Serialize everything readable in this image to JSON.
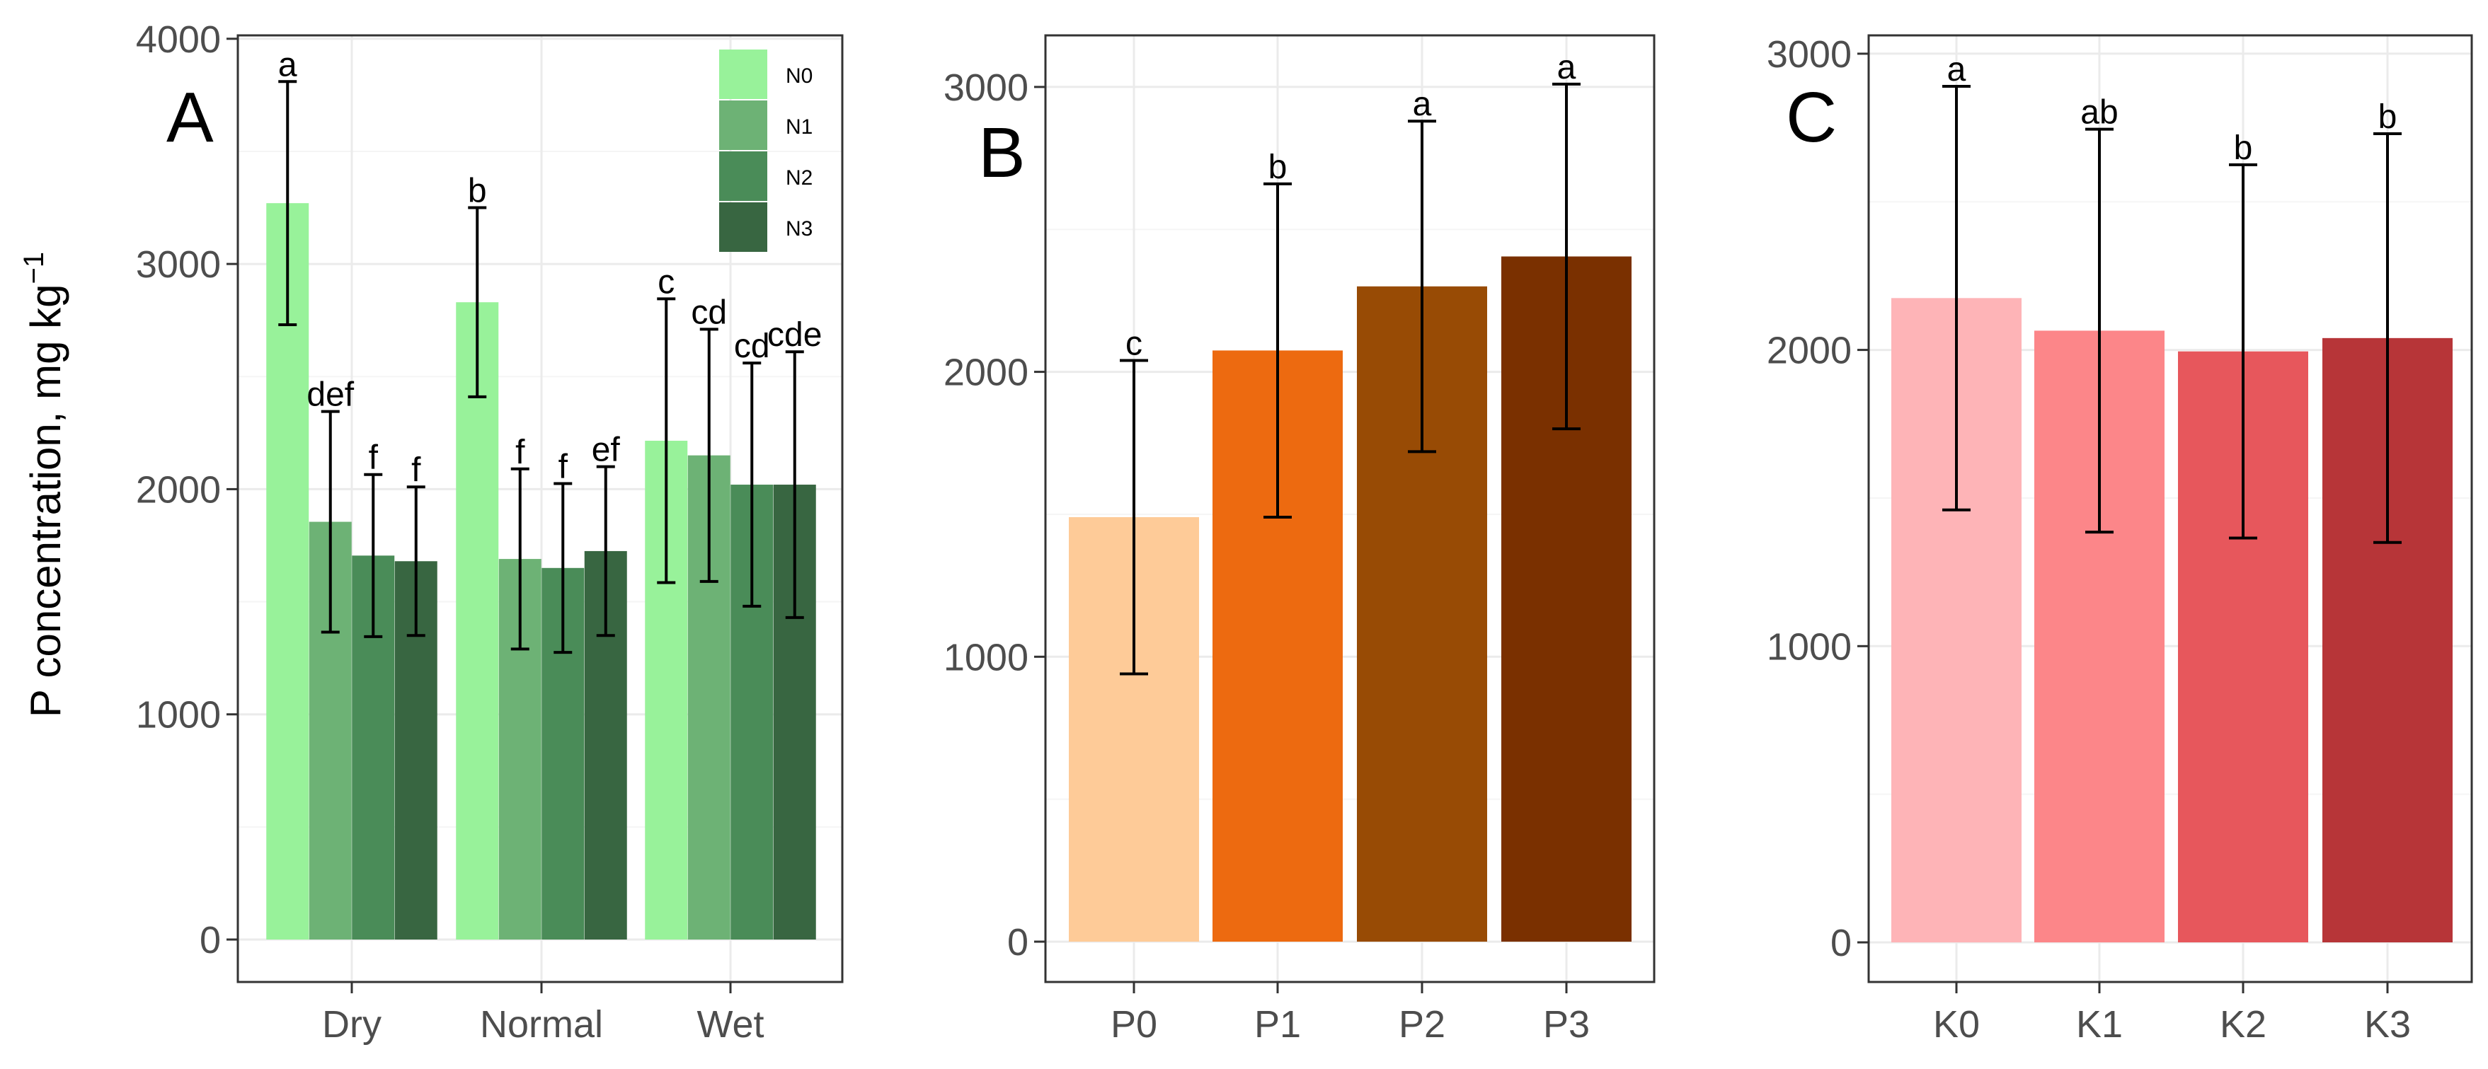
{
  "chart_data": [
    {
      "type": "bar",
      "panel_label": "A",
      "ylabel": "P concentration, mg kg",
      "ylabel_superscript": "−1",
      "xlabel": "",
      "ylim": [
        0,
        4000
      ],
      "yticks": [
        "0",
        "1000",
        "2000",
        "3000",
        "4000"
      ],
      "grid": true,
      "legend_position": "top-right",
      "categories": [
        "Dry",
        "Normal",
        "Wet"
      ],
      "series": [
        {
          "name": "N0",
          "color": "#98f29a",
          "values": [
            3270,
            2830,
            2215
          ],
          "error": [
            540,
            420,
            630
          ],
          "letters": [
            "a",
            "b",
            "c"
          ]
        },
        {
          "name": "N1",
          "color": "#6db275",
          "values": [
            1855,
            1690,
            2150
          ],
          "error": [
            490,
            400,
            560
          ],
          "letters": [
            "def",
            "f",
            "cd"
          ]
        },
        {
          "name": "N2",
          "color": "#4a8c58",
          "values": [
            1705,
            1650,
            2020
          ],
          "error": [
            360,
            375,
            540
          ],
          "letters": [
            "f",
            "f",
            "cd"
          ]
        },
        {
          "name": "N3",
          "color": "#386641",
          "values": [
            1680,
            1725,
            2020
          ],
          "error": [
            330,
            375,
            590
          ],
          "letters": [
            "f",
            "ef",
            "cde"
          ]
        }
      ]
    },
    {
      "type": "bar",
      "panel_label": "B",
      "ylim": [
        0,
        3000
      ],
      "yticks": [
        "0",
        "1000",
        "2000",
        "3000"
      ],
      "grid": true,
      "categories": [
        "P0",
        "P1",
        "P2",
        "P3"
      ],
      "values": [
        1490,
        2075,
        2300,
        2405
      ],
      "error": [
        550,
        585,
        580,
        605
      ],
      "letters": [
        "c",
        "b",
        "a",
        "a"
      ],
      "colors": [
        "#fecb98",
        "#ed6a10",
        "#984b05",
        "#7a3000"
      ]
    },
    {
      "type": "bar",
      "panel_label": "C",
      "ylim": [
        0,
        3000
      ],
      "yticks": [
        "0",
        "1000",
        "2000",
        "3000"
      ],
      "grid": true,
      "categories": [
        "K0",
        "K1",
        "K2",
        "K3"
      ],
      "values": [
        2175,
        2065,
        1995,
        2040
      ],
      "error": [
        715,
        680,
        630,
        690
      ],
      "letters": [
        "a",
        "ab",
        "b",
        "b"
      ],
      "colors": [
        "#feb4b7",
        "#fc8689",
        "#e7575c",
        "#b73538"
      ]
    }
  ]
}
